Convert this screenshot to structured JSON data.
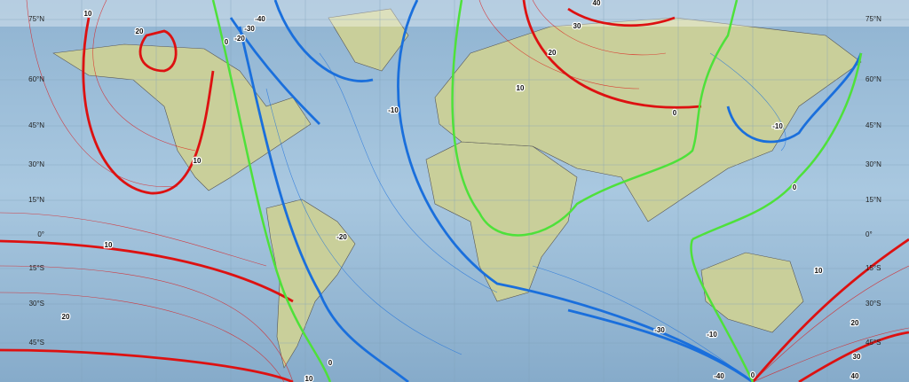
{
  "map": {
    "lat_labels": [
      "75°N",
      "60°N",
      "45°N",
      "30°N",
      "15°N",
      "0°",
      "15°S",
      "30°S",
      "45°S"
    ],
    "contour_labels": [
      "10",
      "20",
      "-40",
      "-30",
      "-20",
      "0",
      "-10",
      "40",
      "30",
      "20",
      "10",
      "0",
      "-10",
      "0",
      "10",
      "10",
      "20",
      "-20",
      "0",
      "10",
      "-30",
      "-10",
      "-40",
      "0",
      "10",
      "20",
      "30",
      "40"
    ]
  }
}
